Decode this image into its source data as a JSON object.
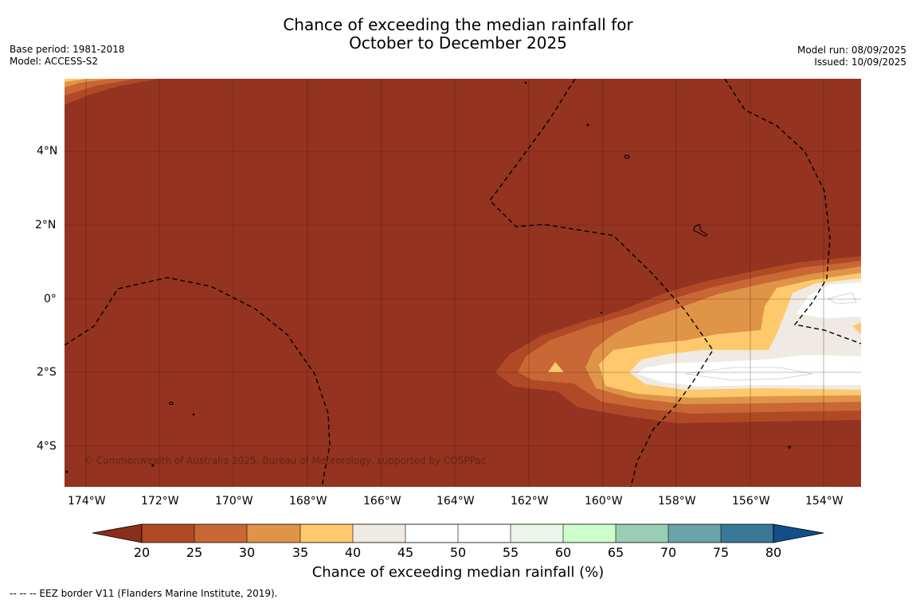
{
  "title_line1": "Chance of exceeding the median rainfall for",
  "title_line2": "October to December 2025",
  "left_meta": {
    "base_period": "Base period: 1981-2018",
    "model": "Model: ACCESS-S2"
  },
  "right_meta": {
    "model_run": "Model run: 08/09/2025",
    "issued": "Issued: 10/09/2025"
  },
  "map": {
    "lat_labels": [
      "4°N",
      "2°N",
      "0°",
      "2°S",
      "4°S"
    ],
    "lon_labels": [
      "174°W",
      "172°W",
      "170°W",
      "168°W",
      "166°W",
      "164°W",
      "162°W",
      "160°W",
      "158°W",
      "156°W",
      "154°W"
    ],
    "credit": "© Commonwealth of Australia 2025, Bureau of Meteorology, supported by COSPPac",
    "background_color": "#943320"
  },
  "colorbar": {
    "ticks": [
      "20",
      "25",
      "30",
      "35",
      "40",
      "45",
      "50",
      "55",
      "60",
      "65",
      "70",
      "75",
      "80"
    ],
    "colors": [
      "#8b2e1a",
      "#b04a26",
      "#c96834",
      "#e09448",
      "#fdc96c",
      "#efeae3",
      "#ffffff",
      "#ffffff",
      "#eaf6e8",
      "#ccffcc",
      "#99cdb4",
      "#6aa3a8",
      "#3a7898",
      "#124e8a"
    ],
    "title": "Chance of exceeding median rainfall (%)"
  },
  "footnote": "--  --  -- EEZ border V11 (Flanders Marine Institute, 2019)."
}
